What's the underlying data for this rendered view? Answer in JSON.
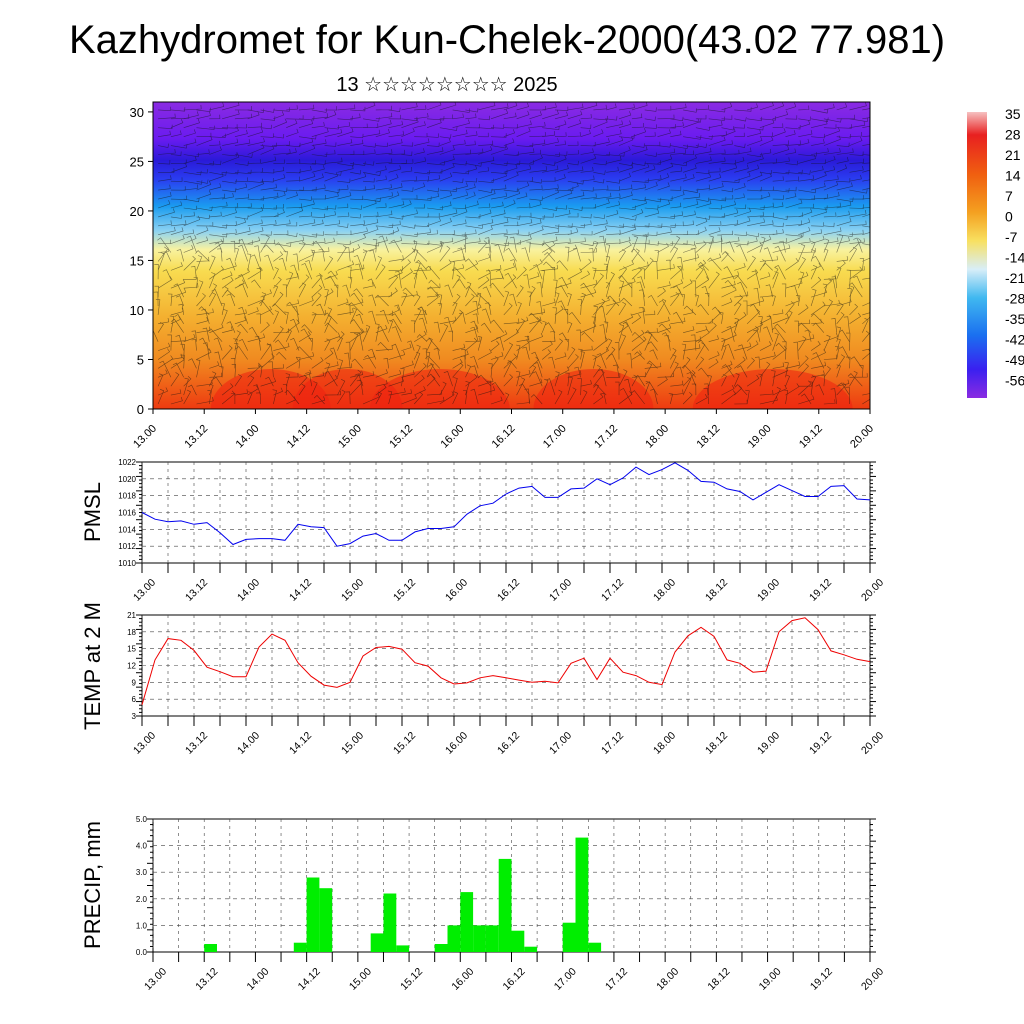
{
  "title": "Kazhydromet for Kun-Chelek-2000(43.02 77.981)",
  "subtitle": "13 ☆☆☆☆☆☆☆☆ 2025",
  "x_tick_labels": [
    "13.00",
    "13.12",
    "14.00",
    "14.12",
    "15.00",
    "15.12",
    "16.00",
    "16.12",
    "17.00",
    "17.12",
    "18.00",
    "18.12",
    "19.00",
    "19.12",
    "20.00"
  ],
  "colorbar_labels": [
    "35",
    "28",
    "21",
    "14",
    "7",
    "0",
    "-7",
    "-14",
    "-21",
    "-28",
    "-35",
    "-42",
    "-49",
    "-56"
  ],
  "chart_data": [
    {
      "type": "heatmap",
      "description_key": "vertical cross-section",
      "y_ticks": [
        0,
        5,
        10,
        15,
        20,
        25,
        30
      ],
      "ylim": [
        0,
        31
      ],
      "xlim": [
        0,
        14
      ],
      "colorbar": {
        "values": [
          35,
          28,
          21,
          14,
          7,
          0,
          -7,
          -14,
          -21,
          -28,
          -35,
          -42,
          -49,
          -56
        ]
      }
    },
    {
      "type": "line",
      "ylabel": "PMSL",
      "ylim": [
        1010,
        1022
      ],
      "y_ticks": [
        1010,
        1012,
        1014,
        1016,
        1018,
        1020,
        1022
      ],
      "color": "#0000ee",
      "x_step": 0.25,
      "values": [
        1016,
        1015.2,
        1014.9,
        1015,
        1014.6,
        1014.8,
        1013.6,
        1012.2,
        1012.8,
        1012.9,
        1012.9,
        1012.7,
        1014.6,
        1014.3,
        1014.2,
        1012,
        1012.3,
        1013.2,
        1013.5,
        1012.7,
        1012.7,
        1013.7,
        1014.1,
        1014.1,
        1014.3,
        1015.8,
        1016.8,
        1017.1,
        1018.2,
        1018.9,
        1019.1,
        1017.8,
        1017.8,
        1018.8,
        1018.9,
        1020,
        1019.3,
        1020.1,
        1021.4,
        1020.5,
        1021.1,
        1021.9,
        1021,
        1019.7,
        1019.6,
        1018.8,
        1018.5,
        1017.5,
        1018.4,
        1019.3,
        1018.6,
        1017.9,
        1017.9,
        1019.1,
        1019.2,
        1017.6,
        1017.5
      ]
    },
    {
      "type": "line",
      "ylabel": "TEMP at 2 M",
      "ylim": [
        3,
        21
      ],
      "y_ticks": [
        3,
        6,
        9,
        12,
        15,
        18,
        21
      ],
      "color": "#ee0000",
      "x_step": 0.25,
      "values": [
        5,
        13,
        16.8,
        16.5,
        14.7,
        11.7,
        10.9,
        10,
        10,
        15.3,
        17.6,
        16.5,
        12.5,
        10.1,
        8.5,
        8.1,
        9,
        13.7,
        15.2,
        15.4,
        14.9,
        12.5,
        11.9,
        9.8,
        8.7,
        8.9,
        9.8,
        10.2,
        9.8,
        9.4,
        9,
        9.2,
        8.9,
        12.4,
        13.3,
        9.5,
        13.3,
        10.8,
        10.2,
        9,
        8.6,
        14.4,
        17.3,
        18.8,
        17.2,
        13,
        12.4,
        10.8,
        11,
        18,
        20,
        20.5,
        18.4,
        14.6,
        13.9,
        13.1,
        12.7
      ]
    },
    {
      "type": "bar",
      "ylabel": "PRECIP, mm",
      "ylim": [
        0,
        5
      ],
      "y_ticks": [
        "0.0",
        "1.0",
        "2.0",
        "3.0",
        "4.0",
        "5.0"
      ],
      "color": "#00ee00",
      "bar_width": 0.25,
      "bars": [
        {
          "x": 1.0,
          "value": 0.3
        },
        {
          "x": 2.75,
          "value": 0.35
        },
        {
          "x": 3.0,
          "value": 2.8
        },
        {
          "x": 3.25,
          "value": 2.4
        },
        {
          "x": 4.25,
          "value": 0.7
        },
        {
          "x": 4.5,
          "value": 2.2
        },
        {
          "x": 4.75,
          "value": 0.25
        },
        {
          "x": 5.5,
          "value": 0.3
        },
        {
          "x": 5.75,
          "value": 1.0
        },
        {
          "x": 6.0,
          "value": 2.25
        },
        {
          "x": 6.25,
          "value": 1.0
        },
        {
          "x": 6.5,
          "value": 1.0
        },
        {
          "x": 6.75,
          "value": 3.5
        },
        {
          "x": 7.0,
          "value": 0.8
        },
        {
          "x": 7.25,
          "value": 0.2
        },
        {
          "x": 8.0,
          "value": 1.1
        },
        {
          "x": 8.25,
          "value": 4.3
        },
        {
          "x": 8.5,
          "value": 0.35
        }
      ]
    }
  ]
}
